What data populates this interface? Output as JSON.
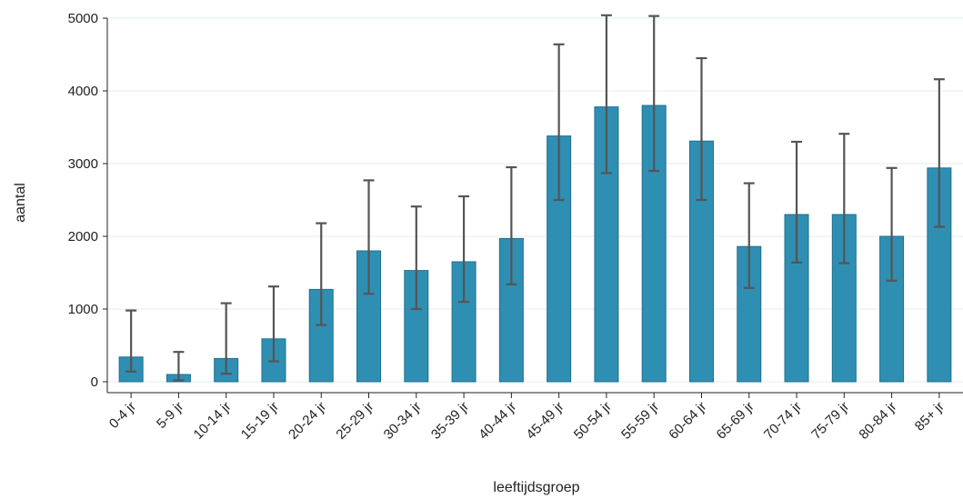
{
  "chart_data": {
    "type": "bar",
    "title": "",
    "xlabel": "leeftijdsgroep",
    "ylabel": "aantal",
    "ylim": [
      0,
      5000
    ],
    "yticks": [
      0,
      1000,
      2000,
      3000,
      4000,
      5000
    ],
    "grid": true,
    "categories": [
      "0-4 jr",
      "5-9 jr",
      "10-14 jr",
      "15-19 jr",
      "20-24 jr",
      "25-29 jr",
      "30-34 jr",
      "35-39 jr",
      "40-44 jr",
      "45-49 jr",
      "50-54 jr",
      "55-59 jr",
      "60-64 jr",
      "65-69 jr",
      "70-74 jr",
      "75-79 jr",
      "80-84 jr",
      "85+ jr"
    ],
    "values": [
      340,
      100,
      320,
      590,
      1270,
      1800,
      1530,
      1650,
      1970,
      3380,
      3780,
      3800,
      3310,
      1860,
      2300,
      2300,
      2000,
      2940
    ],
    "error_low": [
      140,
      20,
      110,
      280,
      780,
      1210,
      1000,
      1100,
      1340,
      2500,
      2870,
      2900,
      2500,
      1290,
      1640,
      1630,
      1390,
      2130
    ],
    "error_high": [
      980,
      410,
      1080,
      1310,
      2180,
      2770,
      2410,
      2550,
      2950,
      4640,
      5040,
      5030,
      4450,
      2730,
      3300,
      3410,
      2940,
      4160
    ],
    "colors": {
      "bar": "#2f8fb3",
      "bar_edge": "#1f6f8f",
      "error_bar": "#555555",
      "grid": "#e3ecee",
      "axis": "#222222"
    }
  }
}
